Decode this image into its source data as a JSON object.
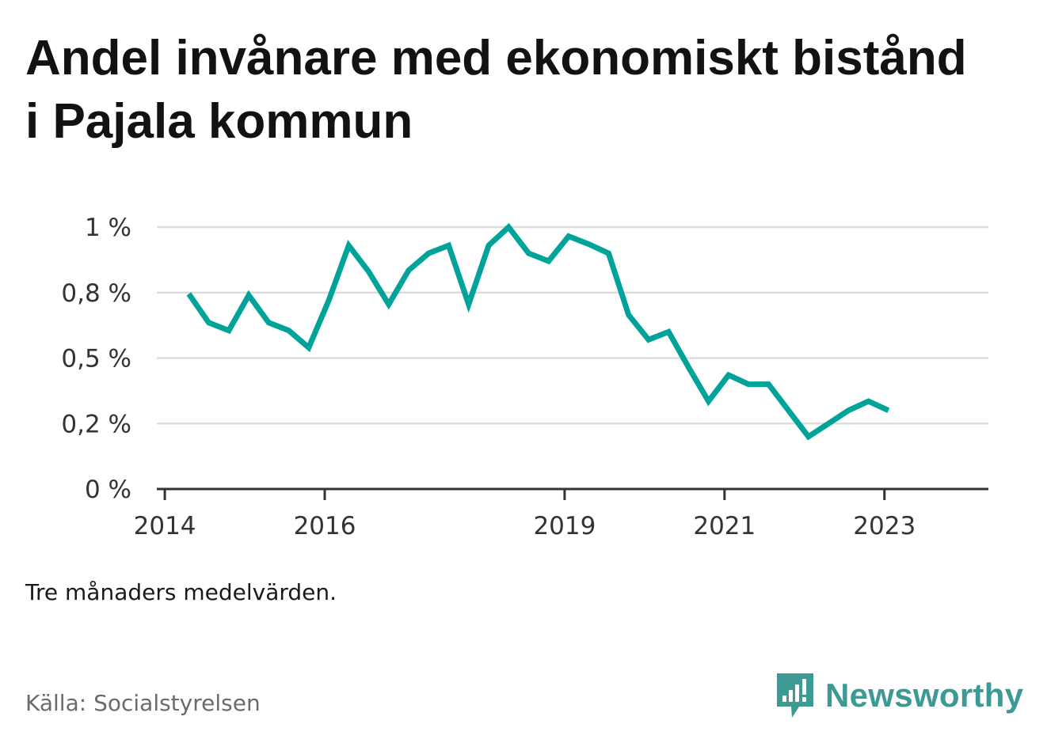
{
  "title": "Andel invånare med ekonomiskt bistånd i Pajala kommun",
  "note": "Tre månaders medelvärden.",
  "source": "Källa: Socialstyrelsen",
  "brand": {
    "name": "Newsworthy",
    "icon": "bar-chart-speech-bubble-icon",
    "color": "#3d9994"
  },
  "chart_data": {
    "type": "line",
    "line_color": "#00a39a",
    "grid": true,
    "x_ticks": [
      {
        "value": 2014.0,
        "label": "2014"
      },
      {
        "value": 2016.0,
        "label": "2016"
      },
      {
        "value": 2019.0,
        "label": "2019"
      },
      {
        "value": 2021.0,
        "label": "2021"
      },
      {
        "value": 2023.0,
        "label": "2023"
      }
    ],
    "y_ticks": [
      {
        "value": 0.0,
        "label": "0 %"
      },
      {
        "value": 0.25,
        "label": "0,2 %"
      },
      {
        "value": 0.5,
        "label": "0,5 %"
      },
      {
        "value": 0.75,
        "label": "0,8 %"
      },
      {
        "value": 1.0,
        "label": "1 %"
      }
    ],
    "xlim": [
      2013.9,
      2024.3
    ],
    "ylim": [
      0,
      1.0
    ],
    "series": [
      {
        "values": [
          {
            "x": 2014.3,
            "y": 0.745
          },
          {
            "x": 2014.55,
            "y": 0.635
          },
          {
            "x": 2014.8,
            "y": 0.605
          },
          {
            "x": 2015.05,
            "y": 0.74
          },
          {
            "x": 2015.3,
            "y": 0.635
          },
          {
            "x": 2015.55,
            "y": 0.605
          },
          {
            "x": 2015.8,
            "y": 0.54
          },
          {
            "x": 2016.05,
            "y": 0.72
          },
          {
            "x": 2016.3,
            "y": 0.93
          },
          {
            "x": 2016.55,
            "y": 0.83
          },
          {
            "x": 2016.8,
            "y": 0.705
          },
          {
            "x": 2017.05,
            "y": 0.835
          },
          {
            "x": 2017.3,
            "y": 0.9
          },
          {
            "x": 2017.55,
            "y": 0.93
          },
          {
            "x": 2017.8,
            "y": 0.705
          },
          {
            "x": 2018.05,
            "y": 0.93
          },
          {
            "x": 2018.3,
            "y": 1.0
          },
          {
            "x": 2018.55,
            "y": 0.9
          },
          {
            "x": 2018.8,
            "y": 0.87
          },
          {
            "x": 2019.05,
            "y": 0.965
          },
          {
            "x": 2019.3,
            "y": 0.935
          },
          {
            "x": 2019.55,
            "y": 0.9
          },
          {
            "x": 2019.8,
            "y": 0.665
          },
          {
            "x": 2020.05,
            "y": 0.57
          },
          {
            "x": 2020.3,
            "y": 0.6
          },
          {
            "x": 2020.55,
            "y": 0.465
          },
          {
            "x": 2020.8,
            "y": 0.335
          },
          {
            "x": 2021.05,
            "y": 0.435
          },
          {
            "x": 2021.3,
            "y": 0.4
          },
          {
            "x": 2021.55,
            "y": 0.4
          },
          {
            "x": 2021.8,
            "y": 0.3
          },
          {
            "x": 2022.05,
            "y": 0.2
          },
          {
            "x": 2022.3,
            "y": 0.25
          },
          {
            "x": 2022.55,
            "y": 0.3
          },
          {
            "x": 2022.8,
            "y": 0.335
          },
          {
            "x": 2023.05,
            "y": 0.3
          }
        ]
      }
    ]
  }
}
